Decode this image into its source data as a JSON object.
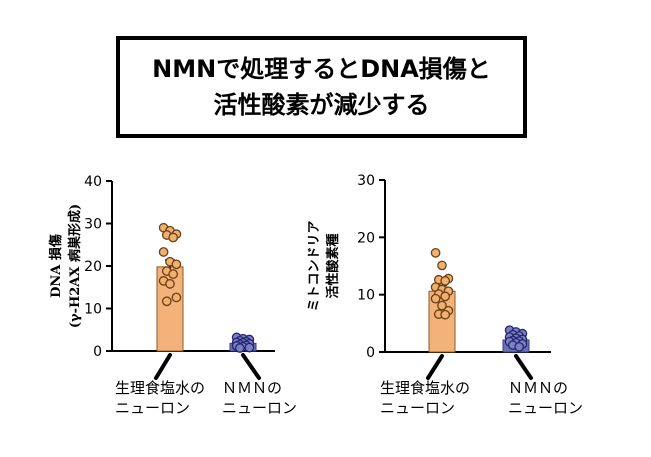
{
  "title": {
    "line1": "NMNで処理するとDNA損傷と",
    "line2": "活性酸素が減少する"
  },
  "colors": {
    "saline": "#f2b27a",
    "nmn": "#6b6fb3",
    "nmn_dark": "#3b3f86",
    "axis": "#000000"
  },
  "chart_data": [
    {
      "type": "bar",
      "ylabel_line1": "DNA 損傷",
      "ylabel_line2": "(γ-H2AX 病巣形成)",
      "ylim": [
        0,
        40
      ],
      "yticks": [
        0,
        10,
        20,
        30,
        40
      ],
      "categories": [
        {
          "line1": "生理食塩水の",
          "line2": "ニューロン"
        },
        {
          "line1": "ＮＭＮの",
          "line2": "ニューロン"
        }
      ],
      "values": [
        19.8,
        1.8
      ],
      "errors": [
        1.6,
        0.4
      ],
      "points": [
        [
          29.0,
          28.3,
          27.5,
          27.3,
          26.7,
          23.3,
          21.0,
          20.4,
          18.8,
          18.1,
          16.5,
          15.8,
          12.6,
          11.7
        ],
        [
          3.2,
          2.9,
          2.7,
          2.4,
          2.2,
          2.0,
          1.9,
          1.7,
          1.5,
          1.3,
          1.2,
          1.0,
          0.8,
          0.7
        ]
      ]
    },
    {
      "type": "bar",
      "ylabel_line1": "ミトコンドリア",
      "ylabel_line2": "活性酸素種",
      "ylim": [
        0,
        30
      ],
      "yticks": [
        0,
        10,
        20,
        30
      ],
      "categories": [
        {
          "line1": "生理食塩水の",
          "line2": "ニューロン"
        },
        {
          "line1": "ＮＭＮの",
          "line2": "ニューロン"
        }
      ],
      "values": [
        10.6,
        2.1
      ],
      "errors": [
        1.0,
        0.3
      ],
      "points": [
        [
          17.3,
          15.1,
          12.8,
          12.6,
          12.4,
          11.3,
          10.9,
          10.6,
          10.1,
          9.7,
          9.3,
          8.1,
          7.2,
          6.6,
          6.5
        ],
        [
          3.8,
          3.5,
          3.2,
          3.0,
          2.8,
          2.6,
          2.4,
          2.2,
          2.0,
          1.9,
          1.8,
          1.6,
          1.4,
          1.2,
          0.9
        ]
      ]
    }
  ]
}
